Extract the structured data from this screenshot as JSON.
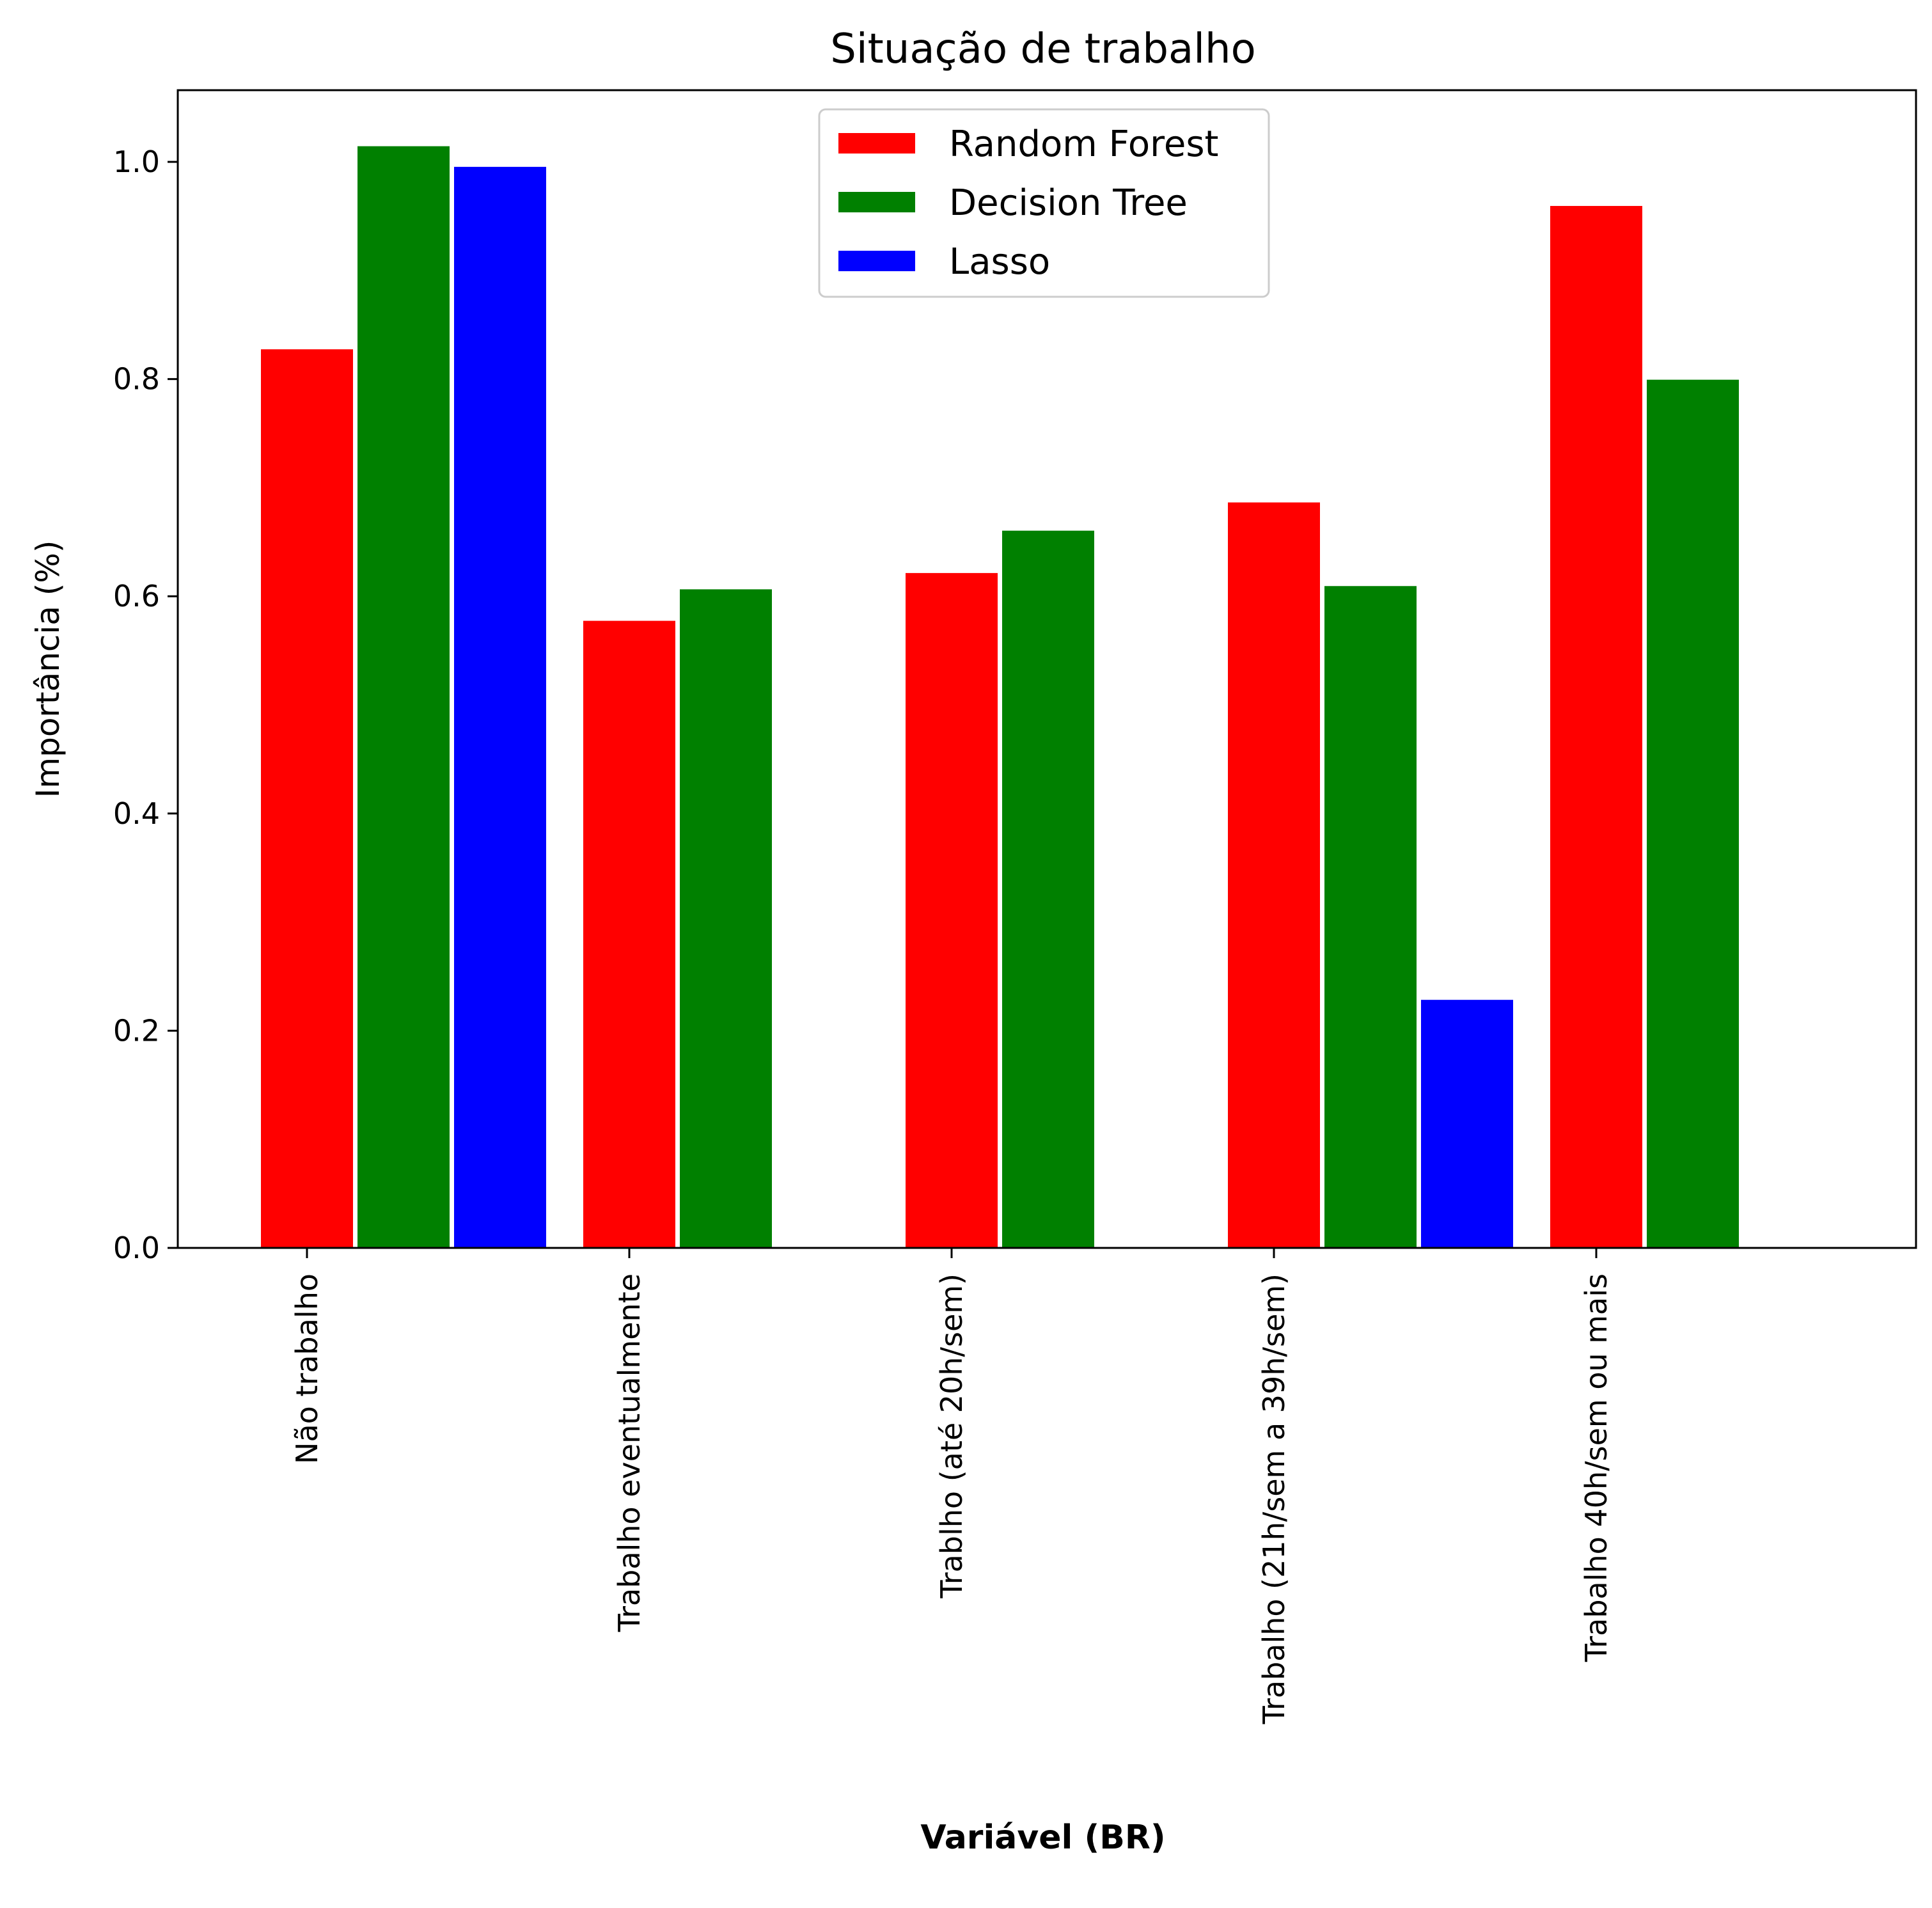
{
  "chart_data": {
    "type": "bar",
    "title": "Situação de trabalho",
    "xlabel": "Variável (BR)",
    "ylabel": "Importância (%)",
    "categories": [
      "Não trabalho",
      "Trabalho eventualmente",
      "Trablho (até 20h/sem)",
      "Trabalho (21h/sem a 39h/sem)",
      "Trabalho 40h/sem ou mais"
    ],
    "series": [
      {
        "name": "Random Forest",
        "color": "#ff0000",
        "values": [
          0.828,
          0.578,
          0.622,
          0.687,
          0.96
        ]
      },
      {
        "name": "Decision Tree",
        "color": "#008000",
        "values": [
          1.015,
          0.607,
          0.661,
          0.61,
          0.8
        ]
      },
      {
        "name": "Lasso",
        "color": "#0000ff",
        "values": [
          0.996,
          null,
          null,
          0.229,
          null
        ]
      }
    ],
    "ylim": [
      0,
      1.066
    ],
    "yticks": [
      "0.0",
      "0.2",
      "0.4",
      "0.6",
      "0.8",
      "1.0"
    ],
    "legend_position": "top-center",
    "grid": false
  }
}
